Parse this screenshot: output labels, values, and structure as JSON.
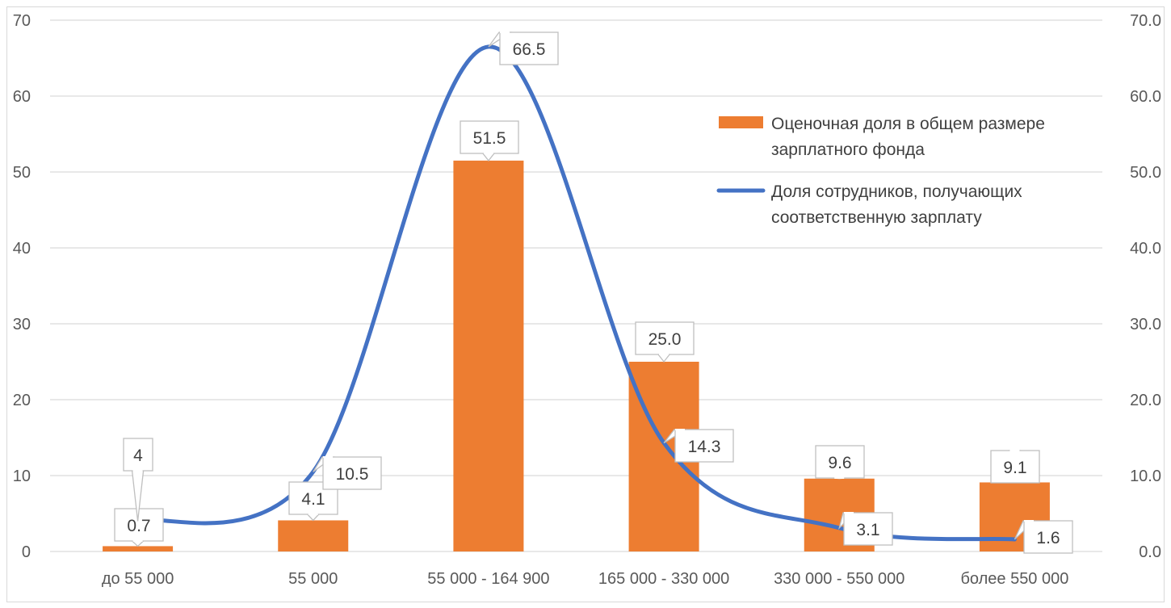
{
  "chart_data": {
    "type": "bar+line",
    "categories": [
      "до 55 000",
      "55 000",
      "55 000 - 164 900",
      "165 000 - 330 000",
      "330 000 - 550 000",
      "более 550 000"
    ],
    "series": [
      {
        "name": "Оценочная доля в общем размере зарплатного фонда",
        "type": "bar",
        "axis": "left",
        "color": "#ED7D31",
        "values": [
          0.7,
          4.1,
          51.5,
          25.0,
          9.6,
          9.1
        ],
        "labels": [
          "0.7",
          "4.1",
          "51.5",
          "25.0",
          "9.6",
          "9.1"
        ]
      },
      {
        "name": "Доля сотрудников, получающих соответственную зарплату",
        "type": "line",
        "smooth": true,
        "axis": "right",
        "color": "#4472C4",
        "values": [
          4,
          10.5,
          66.5,
          14.3,
          3.1,
          1.6
        ],
        "labels": [
          "4",
          "10.5",
          "66.5",
          "14.3",
          "3.1",
          "1.6"
        ]
      }
    ],
    "y_left": {
      "min": 0,
      "max": 70,
      "step": 10,
      "ticks": [
        "0",
        "10",
        "20",
        "30",
        "40",
        "50",
        "60",
        "70"
      ]
    },
    "y_right": {
      "min": 0,
      "max": 70,
      "step": 10,
      "ticks": [
        "0.0",
        "10.0",
        "20.0",
        "30.0",
        "40.0",
        "50.0",
        "60.0",
        "70.0"
      ]
    },
    "grid": true,
    "legend": {
      "position": "right",
      "items": [
        {
          "lines": [
            "Оценочная доля в общем размере",
            "зарплатного фонда"
          ]
        },
        {
          "lines": [
            "Доля сотрудников, получающих",
            "соответственную зарплату"
          ]
        }
      ]
    }
  }
}
